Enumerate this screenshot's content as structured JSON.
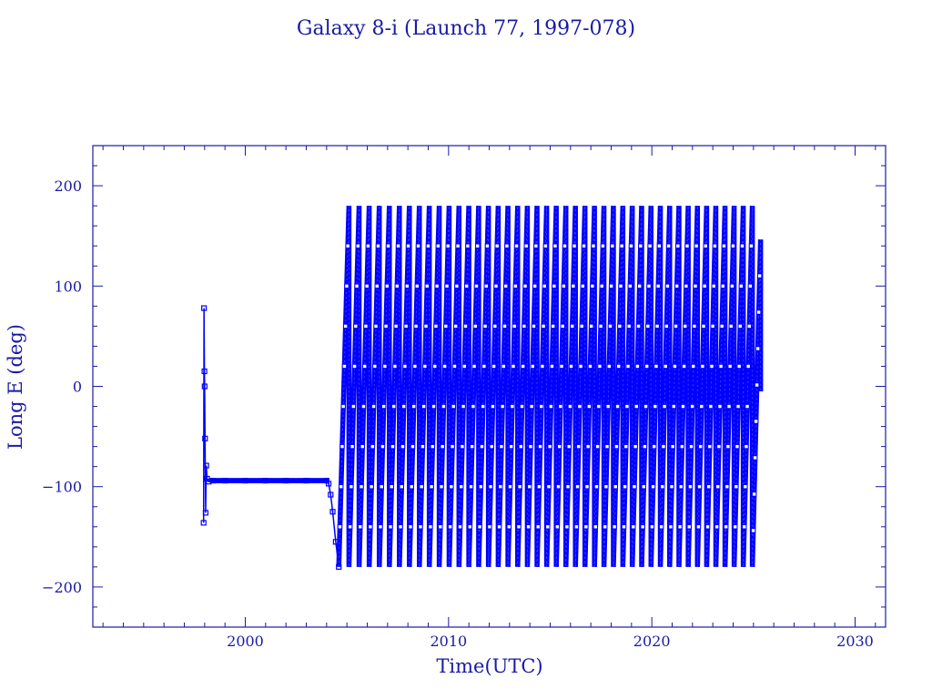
{
  "chart_data": {
    "type": "line",
    "title": "Galaxy 8-i (Launch 77, 1997-078)",
    "xlabel": "Time(UTC)",
    "ylabel": "Long E (deg)",
    "xlim": [
      1992.5,
      2031.5
    ],
    "ylim": [
      -240,
      240
    ],
    "x_ticks": [
      2000,
      2010,
      2020,
      2030
    ],
    "y_ticks": [
      -200,
      -100,
      0,
      100,
      200
    ],
    "colors": {
      "series": "#0000ff",
      "frame": "#1a1aa6"
    },
    "series": [
      {
        "x": [
          1997.95,
          1997.97,
          1997.99,
          1998.0,
          1998.02,
          1998.05,
          1998.08,
          1998.12,
          1998.2,
          1998.4,
          1999.0,
          2000.0,
          2001.0,
          2002.0,
          2003.0,
          2004.0,
          2004.1,
          2004.2,
          2004.3,
          2004.45,
          2004.6
        ],
        "y": [
          -136,
          78,
          15,
          0,
          -52,
          -126,
          -79,
          -92,
          -95,
          -94,
          -94,
          -94,
          -94,
          -94,
          -94,
          -94,
          -97,
          -108,
          -125,
          -155,
          -180
        ]
      }
    ],
    "drift": {
      "start_year": 2004.6,
      "end_year": 2025.35,
      "end_value": -5,
      "cycle_years_start": 0.5,
      "cycle_years_end": 0.445,
      "direction": "eastward, wraps from +180 to -180"
    }
  }
}
